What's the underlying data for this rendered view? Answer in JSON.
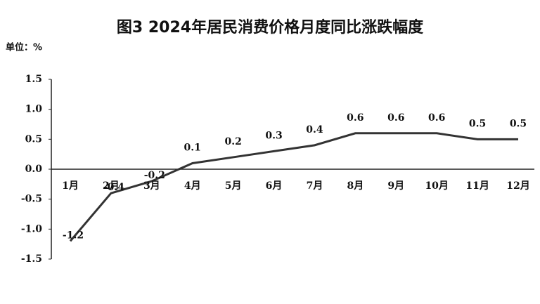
{
  "chart_data": {
    "type": "line",
    "title": "图3  2024年居民消费价格月度同比涨跌幅度",
    "unit": "单位：%",
    "categories": [
      "1月",
      "2月",
      "3月",
      "4月",
      "5月",
      "6月",
      "7月",
      "8月",
      "9月",
      "10月",
      "11月",
      "12月"
    ],
    "values": [
      -1.2,
      -0.4,
      -0.2,
      0.1,
      0.2,
      0.3,
      0.4,
      0.6,
      0.6,
      0.6,
      0.5,
      0.5
    ],
    "color": "#333333",
    "ylim": [
      -1.5,
      1.5
    ],
    "yticks": [
      1.5,
      {
        "value": 1.0,
        "label": "1.0"
      },
      0.5,
      {
        "value": 0,
        "label": "0.0"
      },
      -0.5,
      {
        "value": -1.0,
        "label": "-1.0"
      },
      -1.5
    ],
    "grid": false
  }
}
